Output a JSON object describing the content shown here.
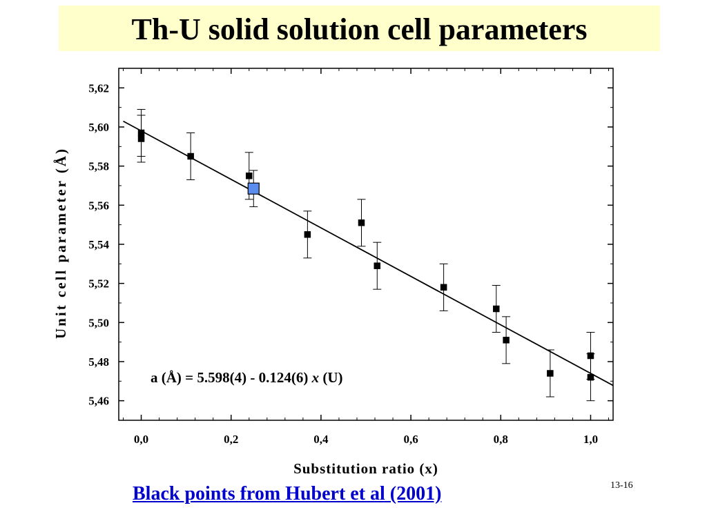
{
  "slide": {
    "title": "Th-U solid solution cell parameters",
    "source_link": "Black points from Hubert et al (2001)",
    "slide_number": "13-16"
  },
  "chart_data": {
    "type": "scatter",
    "title": "",
    "xlabel": "Substitution ratio (x)",
    "ylabel": "Unit cell parameter (Å)",
    "xlim": [
      -0.05,
      1.05
    ],
    "ylim": [
      5.45,
      5.63
    ],
    "x_ticks": [
      0.0,
      0.2,
      0.4,
      0.6,
      0.8,
      1.0
    ],
    "x_tick_labels": [
      "0,0",
      "0,2",
      "0,4",
      "0,6",
      "0,8",
      "1,0"
    ],
    "y_ticks": [
      5.46,
      5.48,
      5.5,
      5.52,
      5.54,
      5.56,
      5.58,
      5.6,
      5.62
    ],
    "y_tick_labels": [
      "5,46",
      "5,48",
      "5,50",
      "5,52",
      "5,54",
      "5,56",
      "5,58",
      "5,60",
      "5,62"
    ],
    "annotation": "a (Å) = 5.598(4) - 0.124(6) x (U)",
    "series": [
      {
        "marker": "square",
        "color": "#000000",
        "points": [
          {
            "x": 0.0,
            "y": 5.597,
            "err": 0.012
          },
          {
            "x": 0.0,
            "y": 5.594,
            "err": 0.012
          },
          {
            "x": 0.11,
            "y": 5.585,
            "err": 0.012
          },
          {
            "x": 0.24,
            "y": 5.575,
            "err": 0.012
          },
          {
            "x": 0.37,
            "y": 5.545,
            "err": 0.012
          },
          {
            "x": 0.49,
            "y": 5.551,
            "err": 0.012
          },
          {
            "x": 0.525,
            "y": 5.529,
            "err": 0.012
          },
          {
            "x": 0.673,
            "y": 5.518,
            "err": 0.012
          },
          {
            "x": 0.79,
            "y": 5.507,
            "err": 0.012
          },
          {
            "x": 0.812,
            "y": 5.491,
            "err": 0.012
          },
          {
            "x": 0.91,
            "y": 5.474,
            "err": 0.012
          },
          {
            "x": 1.0,
            "y": 5.483,
            "err": 0.012
          },
          {
            "x": 1.0,
            "y": 5.472,
            "err": 0.012
          }
        ]
      },
      {
        "marker": "square",
        "color": "#5b8def",
        "points": [
          {
            "x": 0.25,
            "y": 5.5685,
            "err": 0.0093
          }
        ]
      }
    ],
    "fit_line": {
      "intercept": 5.598,
      "slope": -0.124,
      "x_range": [
        -0.04,
        1.05
      ]
    },
    "grid": false
  }
}
